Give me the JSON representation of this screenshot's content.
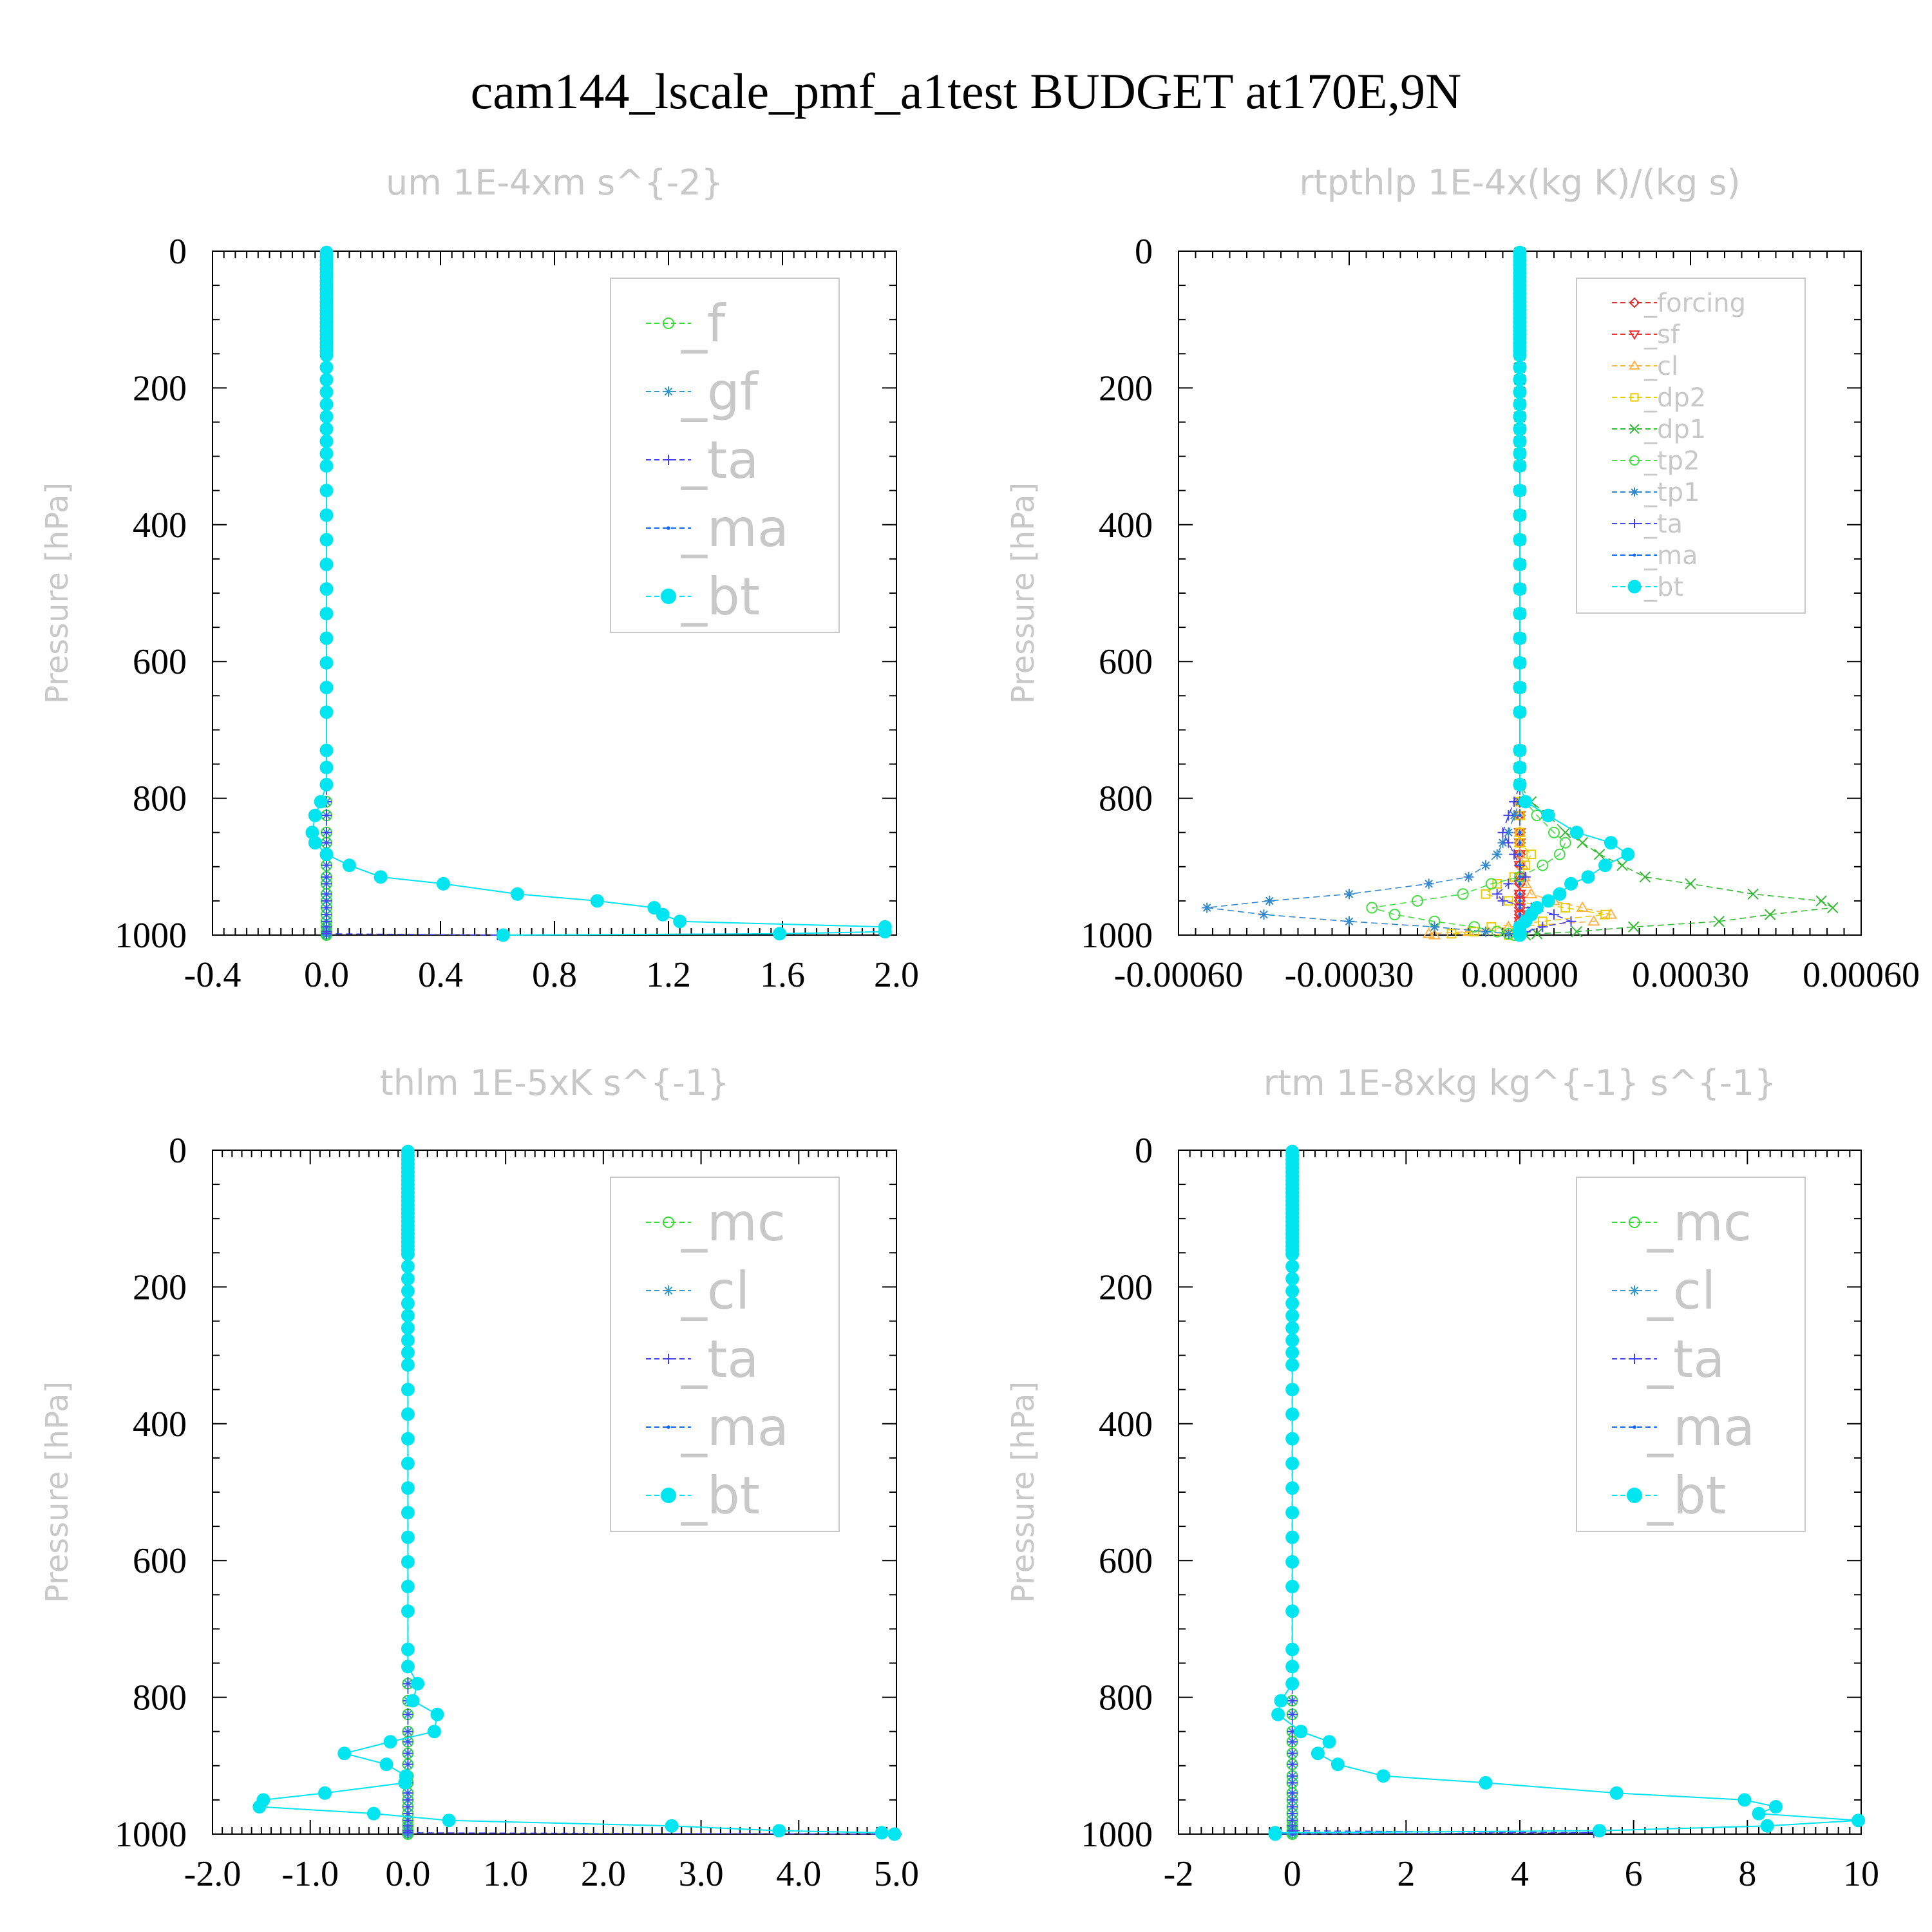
{
  "title": "cam144_lscale_pmf_a1test  BUDGET at170E,9N",
  "chart_data": [
    {
      "type": "line",
      "title": "um  1E-4xm s^{-2}",
      "ylabel": "Pressure [hPa]",
      "xlim": [
        -0.4,
        2.0
      ],
      "ylim": [
        0,
        1000
      ],
      "y_inverted": true,
      "xticks": [
        "-0.4",
        "0.0",
        "0.4",
        "0.8",
        "1.2",
        "1.6",
        "2.0"
      ],
      "yticks": [
        "0",
        "200",
        "400",
        "600",
        "800",
        "1000"
      ],
      "legend": {
        "position": "top-right",
        "size": "large"
      },
      "levels": [
        2,
        5,
        10,
        15,
        20,
        25,
        30,
        35,
        40,
        45,
        50,
        55,
        60,
        65,
        70,
        75,
        80,
        85,
        90,
        95,
        100,
        105,
        110,
        115,
        120,
        125,
        130,
        135,
        140,
        145,
        150,
        160,
        170,
        180,
        190,
        200,
        215,
        230,
        245,
        260,
        275,
        290,
        310,
        330,
        350,
        370,
        390,
        415,
        440,
        465,
        490,
        520,
        555,
        595,
        635,
        675,
        700,
        730,
        755,
        780,
        805,
        825,
        850,
        865,
        882,
        898,
        915,
        925,
        940,
        950,
        960,
        970,
        980,
        990,
        997
      ],
      "series": [
        {
          "name": "_f",
          "color": "#33dd33",
          "marker": "circle",
          "values_upper": 0.0,
          "values_lower": [
            0,
            0,
            0,
            0,
            0,
            0,
            0,
            0,
            0,
            0,
            0,
            0,
            0,
            0,
            0,
            0,
            0,
            0,
            0,
            0
          ]
        },
        {
          "name": "_gf",
          "color": "#3399cc",
          "marker": "star",
          "values_upper": 0.0,
          "values_lower": [
            0,
            0,
            0,
            0,
            0,
            0,
            0,
            0,
            0,
            0,
            0,
            0,
            0,
            0,
            0,
            0,
            0,
            0,
            0,
            0
          ]
        },
        {
          "name": "_ta",
          "color": "#4444ee",
          "marker": "plus",
          "values_upper": 0.0,
          "values_lower": [
            0,
            0,
            0,
            0,
            0,
            0,
            0,
            0,
            0,
            0,
            0,
            0,
            0,
            0,
            0,
            0,
            0,
            0,
            0,
            0.6
          ]
        },
        {
          "name": "_ma",
          "color": "#1166ee",
          "marker": "dot",
          "values_upper": 0.0,
          "values_lower": [
            0,
            0,
            0,
            -0.02,
            -0.04,
            -0.05,
            -0.04,
            0.0,
            0.08,
            0.19,
            0.41,
            0.67,
            0.95,
            1.15,
            1.18,
            1.24,
            1.96,
            1.96,
            1.59,
            0.62
          ]
        },
        {
          "name": "_bt",
          "color": "#00e5f0",
          "marker": "bigdot",
          "values_upper": 0.0,
          "values_lower": [
            0,
            0,
            0,
            -0.02,
            -0.04,
            -0.05,
            -0.04,
            0.0,
            0.08,
            0.19,
            0.41,
            0.67,
            0.95,
            1.15,
            1.18,
            1.24,
            1.96,
            1.96,
            1.59,
            0.62
          ]
        }
      ]
    },
    {
      "type": "line",
      "title": "rtpthlp  1E-4x(kg K)/(kg s)",
      "ylabel": "Pressure [hPa]",
      "xlim": [
        -0.0006,
        0.0006
      ],
      "ylim": [
        0,
        1000
      ],
      "y_inverted": true,
      "xticks": [
        "-0.00060",
        "-0.00030",
        "0.00000",
        "0.00030",
        "0.00060"
      ],
      "yticks": [
        "0",
        "200",
        "400",
        "600",
        "800",
        "1000"
      ],
      "legend": {
        "position": "top-right",
        "size": "small"
      },
      "series": [
        {
          "name": "_forcing",
          "color": "#dd3333",
          "marker": "diamond",
          "values_upper": 0.0,
          "values_lower": [
            0,
            0,
            0,
            0,
            0,
            0,
            0,
            0,
            0,
            0,
            0,
            0,
            0,
            0,
            0,
            0,
            0,
            0,
            0,
            0
          ]
        },
        {
          "name": "_sf",
          "color": "#ee3333",
          "marker": "triangle-down",
          "values_upper": 0.0,
          "values_lower": [
            0,
            0,
            0,
            0,
            0,
            0,
            0,
            0,
            0,
            0,
            0,
            0,
            0,
            0,
            0,
            0,
            0,
            0,
            0,
            0
          ]
        },
        {
          "name": "_cl",
          "color": "#ffb347",
          "marker": "triangle-up",
          "values_upper": 0.0,
          "values_lower": [
            0,
            0,
            0,
            0,
            0,
            0,
            0,
            0,
            5e-06,
            8e-06,
            1e-05,
            2e-05,
            6e-05,
            0.00011,
            0.00016,
            0.00013,
            -2e-05,
            -9e-05,
            -0.00016,
            -0.00015
          ]
        },
        {
          "name": "_dp2",
          "color": "#e8cc00",
          "marker": "square",
          "values_upper": 0.0,
          "values_lower": [
            0,
            0,
            0,
            0,
            0,
            0,
            0,
            2e-05,
            1e-05,
            -1e-05,
            -4e-05,
            -6e-05,
            -2e-05,
            8e-05,
            0.00015,
            4e-05,
            -5e-05,
            -8e-05,
            -0.00012,
            -2e-05
          ]
        },
        {
          "name": "_dp1",
          "color": "#33bb33",
          "marker": "x",
          "values_upper": 0.0,
          "values_lower": [
            0,
            0,
            0,
            2e-05,
            5e-05,
            8e-05,
            0.00011,
            0.00014,
            0.00018,
            0.00022,
            0.0003,
            0.00041,
            0.00053,
            0.00055,
            0.00044,
            0.00035,
            0.0002,
            0.0001,
            3e-05,
            1e-05
          ]
        },
        {
          "name": "_tp2",
          "color": "#44dd44",
          "marker": "circle",
          "values_upper": 0.0,
          "values_lower": [
            0,
            0,
            0,
            1e-05,
            3e-05,
            6e-05,
            8e-05,
            7e-05,
            4e-05,
            0.0,
            -5e-05,
            -0.0001,
            -0.00018,
            -0.00026,
            -0.00022,
            -0.00015,
            -8e-05,
            -4e-05,
            -2e-05,
            -1e-05
          ]
        },
        {
          "name": "_tp1",
          "color": "#3388cc",
          "marker": "star",
          "values_upper": 0.0,
          "values_lower": [
            0,
            0,
            0,
            0.0,
            -1e-05,
            -2e-05,
            -3e-05,
            -4e-05,
            -6e-05,
            -9e-05,
            -0.00016,
            -0.0003,
            -0.00044,
            -0.00055,
            -0.00045,
            -0.0003,
            -0.00015,
            -6e-05,
            -2e-05,
            0.0
          ]
        },
        {
          "name": "_ta",
          "color": "#4444ee",
          "marker": "plus",
          "values_upper": 0.0,
          "values_lower": [
            0,
            0,
            0,
            -1e-05,
            -2e-05,
            -3e-05,
            -2e-05,
            -1e-05,
            0.0,
            1e-05,
            -2e-05,
            -4e-05,
            -3e-05,
            2e-05,
            6e-05,
            9e-05,
            4e-05,
            1e-05,
            0.0,
            0.0
          ]
        },
        {
          "name": "_ma",
          "color": "#1166ee",
          "marker": "dot",
          "values_upper": 0.0,
          "values_lower": [
            0,
            0,
            0,
            0,
            0,
            0,
            0,
            0,
            0,
            0,
            0,
            0,
            0,
            0,
            0,
            0,
            0,
            0,
            0,
            0
          ]
        },
        {
          "name": "_bt",
          "color": "#00e5f0",
          "marker": "bigdot",
          "values_upper": 0.0,
          "values_lower": [
            0,
            0,
            0,
            1e-05,
            5e-05,
            0.0001,
            0.00016,
            0.00019,
            0.00015,
            0.00012,
            9e-05,
            7e-05,
            5e-05,
            3e-05,
            2e-05,
            1e-05,
            0.0,
            0.0,
            0.0,
            0.0
          ]
        }
      ]
    },
    {
      "type": "line",
      "title": "thlm  1E-5xK s^{-1}",
      "ylabel": "Pressure [hPa]",
      "xlim": [
        -2.0,
        5.0
      ],
      "ylim": [
        0,
        1000
      ],
      "y_inverted": true,
      "xticks": [
        "-2.0",
        "-1.0",
        "0.0",
        "1.0",
        "2.0",
        "3.0",
        "4.0",
        "5.0"
      ],
      "yticks": [
        "0",
        "200",
        "400",
        "600",
        "800",
        "1000"
      ],
      "legend": {
        "position": "top-right",
        "size": "large"
      },
      "series": [
        {
          "name": "_mc",
          "color": "#33dd33",
          "marker": "circle",
          "values_upper": 0.0,
          "values_lower": [
            0,
            0,
            0,
            0,
            0,
            0,
            0,
            0,
            0,
            0,
            0,
            0,
            0,
            0,
            0,
            0,
            0,
            0,
            0,
            0
          ]
        },
        {
          "name": "_cl",
          "color": "#3399cc",
          "marker": "star",
          "values_upper": 0.0,
          "values_lower": [
            0,
            0,
            0,
            0,
            0,
            0,
            0,
            0,
            0,
            0,
            0,
            0,
            0,
            0,
            0,
            0,
            0,
            0,
            0,
            0
          ]
        },
        {
          "name": "_ta",
          "color": "#4444ee",
          "marker": "plus",
          "values_upper": 0.0,
          "values_lower": [
            0,
            0,
            0,
            0,
            0,
            0,
            0,
            0,
            0,
            0,
            0,
            0,
            0,
            0,
            0,
            0,
            0,
            0,
            0,
            5.0
          ]
        },
        {
          "name": "_ma",
          "color": "#1166ee",
          "marker": "dot",
          "values_upper": 0.0,
          "values_lower": [
            0,
            0,
            0.1,
            0.05,
            0.3,
            0.27,
            -0.18,
            -0.65,
            -0.22,
            -0.02,
            -0.03,
            -0.85,
            -1.48,
            -1.52,
            -0.35,
            0.42,
            2.7,
            3.8,
            4.85,
            4.98
          ]
        },
        {
          "name": "_bt",
          "color": "#00e5f0",
          "marker": "bigdot",
          "values_upper": 0.0,
          "values_lower": [
            0,
            0,
            0.1,
            0.05,
            0.3,
            0.27,
            -0.18,
            -0.65,
            -0.22,
            -0.02,
            -0.03,
            -0.85,
            -1.48,
            -1.52,
            -0.35,
            0.42,
            2.7,
            3.8,
            4.85,
            4.98
          ]
        }
      ]
    },
    {
      "type": "line",
      "title": "rtm  1E-8xkg kg^{-1} s^{-1}",
      "ylabel": "Pressure [hPa]",
      "xlim": [
        -2,
        10
      ],
      "ylim": [
        0,
        1000
      ],
      "y_inverted": true,
      "xticks": [
        "-2",
        "0",
        "2",
        "4",
        "6",
        "8",
        "10"
      ],
      "yticks": [
        "0",
        "200",
        "400",
        "600",
        "800",
        "1000"
      ],
      "legend": {
        "position": "top-right",
        "size": "large"
      },
      "series": [
        {
          "name": "_mc",
          "color": "#33dd33",
          "marker": "circle",
          "values_upper": 0.0,
          "values_lower": [
            0,
            0,
            0,
            0,
            0,
            0,
            0,
            0,
            0,
            0,
            0,
            0,
            0,
            0,
            0,
            0,
            0,
            0,
            0,
            0
          ]
        },
        {
          "name": "_cl",
          "color": "#3399cc",
          "marker": "star",
          "values_upper": 0.0,
          "values_lower": [
            0,
            0,
            0,
            0,
            0,
            0,
            0,
            0,
            0,
            0,
            0,
            0,
            0,
            0,
            0,
            0,
            0,
            0,
            0,
            0
          ]
        },
        {
          "name": "_ta",
          "color": "#4444ee",
          "marker": "plus",
          "values_upper": 0.0,
          "values_lower": [
            0,
            0,
            0,
            0,
            0,
            0,
            0,
            0,
            0,
            0,
            0,
            0,
            0,
            0,
            0,
            0,
            0,
            0,
            5.3,
            -0.3
          ]
        },
        {
          "name": "_ma",
          "color": "#1166ee",
          "marker": "dot",
          "values_upper": 0.0,
          "values_lower": [
            0,
            0,
            0,
            -0.2,
            -0.25,
            0.15,
            0.65,
            0.45,
            0.8,
            1.6,
            3.4,
            5.7,
            7.95,
            8.5,
            8.2,
            9.95,
            8.35,
            5.4,
            -0.3,
            -0.3
          ]
        },
        {
          "name": "_bt",
          "color": "#00e5f0",
          "marker": "bigdot",
          "values_upper": 0.0,
          "values_lower": [
            0,
            0,
            0,
            -0.2,
            -0.25,
            0.15,
            0.65,
            0.45,
            0.8,
            1.6,
            3.4,
            5.7,
            7.95,
            8.5,
            8.2,
            9.95,
            8.35,
            5.4,
            -0.3,
            -0.3
          ]
        }
      ]
    }
  ]
}
